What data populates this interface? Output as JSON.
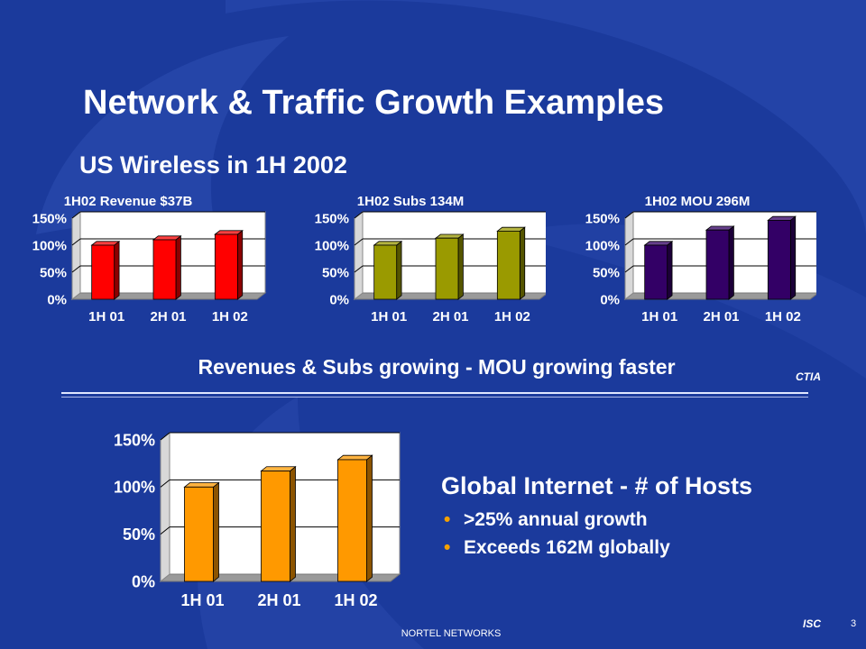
{
  "slide": {
    "title": "Network & Traffic Growth Examples",
    "subtitle": "US Wireless in 1H 2002",
    "caption": "Revenues & Subs growing - MOU growing faster",
    "source": "CTIA",
    "side_heading": "Global Internet - # of Hosts",
    "bullets": [
      ">25% annual growth",
      "Exceeds 162M globally"
    ],
    "footer": "NORTEL NETWORKS",
    "badge": "ISC",
    "page_number": "3",
    "colors": {
      "background": "#1b3a9c",
      "bullet": "#f5a000"
    }
  },
  "chart_data": [
    {
      "type": "bar",
      "title": "1H02 Revenue $37B",
      "categories": [
        "1H 01",
        "2H 01",
        "1H 02"
      ],
      "values": [
        100,
        110,
        120
      ],
      "ylim": [
        0,
        150
      ],
      "yticks": [
        "0%",
        "50%",
        "100%",
        "150%"
      ],
      "grid": true,
      "color": "#ff0000"
    },
    {
      "type": "bar",
      "title": "1H02 Subs 134M",
      "categories": [
        "1H 01",
        "2H 01",
        "1H 02"
      ],
      "values": [
        100,
        113,
        126
      ],
      "ylim": [
        0,
        150
      ],
      "yticks": [
        "0%",
        "50%",
        "100%",
        "150%"
      ],
      "grid": true,
      "color": "#9a9a00"
    },
    {
      "type": "bar",
      "title": "1H02 MOU 296M",
      "categories": [
        "1H 01",
        "2H 01",
        "1H 02"
      ],
      "values": [
        100,
        128,
        146
      ],
      "ylim": [
        0,
        150
      ],
      "yticks": [
        "0%",
        "50%",
        "100%",
        "150%"
      ],
      "grid": true,
      "color": "#330066"
    },
    {
      "type": "bar",
      "title": "",
      "categories": [
        "1H 01",
        "2H 01",
        "1H 02"
      ],
      "values": [
        100,
        117,
        129
      ],
      "ylim": [
        0,
        150
      ],
      "yticks": [
        "0%",
        "50%",
        "100%",
        "150%"
      ],
      "grid": true,
      "color": "#ff9900"
    }
  ]
}
